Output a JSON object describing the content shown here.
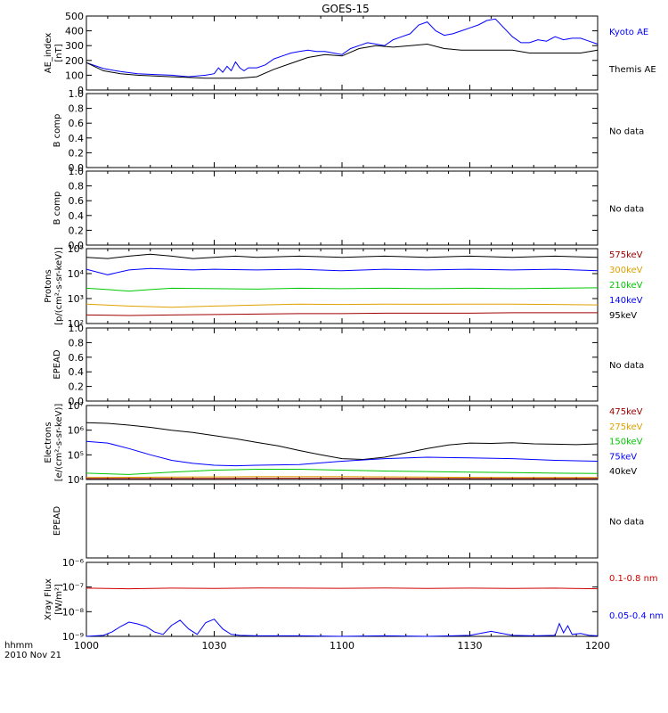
{
  "title": "GOES-15",
  "footer": {
    "line1": "hhmm",
    "line2": "2010 Nov 21"
  },
  "x_axis": {
    "ticks": [
      {
        "t": 0,
        "label": "1000"
      },
      {
        "t": 30,
        "label": "1030"
      },
      {
        "t": 60,
        "label": "1100"
      },
      {
        "t": 90,
        "label": "1130"
      },
      {
        "t": 120,
        "label": "1200"
      }
    ],
    "range_minutes": [
      0,
      120
    ]
  },
  "colors": {
    "black": "#000000",
    "blue": "#0000ff",
    "green": "#00c800",
    "orange": "#ff9600",
    "red": "#c80000",
    "xray_red": "#d00000",
    "darkred": "#a00000",
    "gold": "#e0a000"
  },
  "panels": [
    {
      "key": "ae",
      "ylabel": [
        "AE_index",
        "[nT]"
      ],
      "yticks": [
        "500",
        "400",
        "300",
        "200",
        "100",
        "0"
      ],
      "legend": [
        {
          "text": "Kyoto AE",
          "color": "#0000ff"
        },
        {
          "text": "Themis AE",
          "color": "#000000"
        }
      ]
    },
    {
      "key": "b1",
      "ylabel": [
        "B comp"
      ],
      "yticks": [
        "1.0",
        "0.8",
        "0.6",
        "0.4",
        "0.2",
        "0.0"
      ],
      "nodata": "No data"
    },
    {
      "key": "b2",
      "ylabel": [
        "B comp"
      ],
      "yticks": [
        "1.0",
        "0.8",
        "0.6",
        "0.4",
        "0.2",
        "0.0"
      ],
      "nodata": "No data"
    },
    {
      "key": "protons",
      "ylabel": [
        "Protons",
        "[p/(cm²-s-sr-keV)]"
      ],
      "yticks": [
        "10⁵",
        "10⁴",
        "10³",
        "10²"
      ],
      "legend": [
        {
          "text": "575keV",
          "color": "#a00000"
        },
        {
          "text": "300keV",
          "color": "#e0a000"
        },
        {
          "text": "210keV",
          "color": "#00c800"
        },
        {
          "text": "140keV",
          "color": "#0000ff"
        },
        {
          "text": "95keV",
          "color": "#000000"
        }
      ]
    },
    {
      "key": "epead1",
      "ylabel": [
        "EPEAD"
      ],
      "yticks": [
        "1.0",
        "0.8",
        "0.6",
        "0.4",
        "0.2",
        "0.0"
      ],
      "nodata": "No data"
    },
    {
      "key": "electrons",
      "ylabel": [
        "Electrons",
        "[e/(cm²-s-sr-keV)]"
      ],
      "yticks": [
        "10⁷",
        "10⁶",
        "10⁵",
        "10⁴"
      ],
      "legend": [
        {
          "text": "475keV",
          "color": "#a00000"
        },
        {
          "text": "275keV",
          "color": "#e0a000"
        },
        {
          "text": "150keV",
          "color": "#00c800"
        },
        {
          "text": "75keV",
          "color": "#0000ff"
        },
        {
          "text": "40keV",
          "color": "#000000"
        }
      ]
    },
    {
      "key": "epead2",
      "ylabel": [
        "EPEAD"
      ],
      "yticks": [],
      "nodata": "No data"
    },
    {
      "key": "xray",
      "ylabel": [
        "Xray Flux",
        "[W/m²]"
      ],
      "yticks": [
        "10⁻⁶",
        "10⁻⁷",
        "10⁻⁸",
        "10⁻⁹"
      ],
      "legend": [
        {
          "text": "0.1-0.8 nm",
          "color": "#d00000"
        },
        {
          "text": "0.05-0.4 nm",
          "color": "#0000ff"
        }
      ]
    }
  ],
  "chart_data": [
    {
      "type": "line",
      "title": "GOES-15",
      "ylabel": "AE_index [nT]",
      "ylim": [
        0,
        500
      ],
      "x_unit": "minutes after 1000",
      "series": [
        {
          "name": "Kyoto AE",
          "color": "#0000ff",
          "x": [
            0,
            4,
            8,
            12,
            16,
            20,
            24,
            28,
            30,
            31,
            32,
            33,
            34,
            35,
            36,
            37,
            38,
            40,
            42,
            44,
            46,
            48,
            50,
            52,
            54,
            56,
            58,
            60,
            62,
            64,
            66,
            68,
            70,
            72,
            74,
            76,
            78,
            80,
            82,
            84,
            86,
            88,
            90,
            92,
            94,
            96,
            98,
            100,
            102,
            104,
            106,
            108,
            110,
            112,
            114,
            116,
            118,
            120
          ],
          "y": [
            185,
            145,
            125,
            110,
            105,
            100,
            90,
            100,
            110,
            150,
            120,
            160,
            130,
            190,
            150,
            130,
            150,
            150,
            170,
            210,
            230,
            250,
            260,
            270,
            260,
            260,
            250,
            240,
            280,
            300,
            320,
            310,
            300,
            340,
            360,
            380,
            440,
            460,
            400,
            370,
            380,
            400,
            420,
            440,
            470,
            480,
            420,
            360,
            320,
            320,
            340,
            330,
            360,
            340,
            350,
            350,
            330,
            310
          ]
        },
        {
          "name": "Themis AE",
          "color": "#000000",
          "x": [
            0,
            4,
            8,
            12,
            16,
            20,
            24,
            28,
            32,
            36,
            40,
            44,
            48,
            52,
            56,
            60,
            64,
            68,
            72,
            76,
            80,
            84,
            88,
            92,
            96,
            100,
            104,
            108,
            112,
            116,
            120
          ],
          "y": [
            185,
            130,
            110,
            100,
            95,
            90,
            85,
            80,
            80,
            80,
            90,
            140,
            180,
            220,
            240,
            230,
            280,
            300,
            290,
            300,
            310,
            280,
            270,
            270,
            270,
            270,
            250,
            250,
            250,
            250,
            270
          ]
        }
      ]
    },
    {
      "type": "line",
      "ylabel": "B comp",
      "ylim": [
        0,
        1
      ],
      "series": []
    },
    {
      "type": "line",
      "ylabel": "B comp",
      "ylim": [
        0,
        1
      ],
      "series": []
    },
    {
      "type": "line",
      "ylabel": "Protons [p/(cm²-s-sr-keV)]",
      "log_scale": true,
      "ylim": [
        100,
        100000
      ],
      "series": [
        {
          "name": "95keV",
          "color": "#000000",
          "x": [
            0,
            5,
            10,
            15,
            20,
            25,
            30,
            35,
            40,
            50,
            60,
            70,
            80,
            90,
            100,
            110,
            120
          ],
          "y": [
            45000,
            40000,
            50000,
            60000,
            50000,
            40000,
            45000,
            50000,
            45000,
            50000,
            45000,
            50000,
            45000,
            50000,
            45000,
            50000,
            45000
          ]
        },
        {
          "name": "140keV",
          "color": "#0000ff",
          "x": [
            0,
            5,
            10,
            15,
            20,
            25,
            30,
            40,
            50,
            60,
            70,
            80,
            90,
            100,
            110,
            120
          ],
          "y": [
            15000,
            9000,
            14000,
            16000,
            15000,
            14000,
            15000,
            14000,
            15000,
            13000,
            15000,
            14000,
            15000,
            14000,
            15000,
            13000
          ]
        },
        {
          "name": "210keV",
          "color": "#00c800",
          "x": [
            0,
            5,
            10,
            15,
            20,
            30,
            40,
            50,
            60,
            70,
            80,
            90,
            100,
            110,
            120
          ],
          "y": [
            2600,
            2300,
            2000,
            2300,
            2600,
            2500,
            2400,
            2600,
            2500,
            2600,
            2500,
            2600,
            2500,
            2600,
            2700
          ]
        },
        {
          "name": "300keV",
          "color": "#e0a000",
          "x": [
            0,
            10,
            20,
            30,
            40,
            50,
            60,
            70,
            80,
            90,
            100,
            110,
            120
          ],
          "y": [
            600,
            500,
            450,
            500,
            550,
            600,
            580,
            600,
            590,
            600,
            600,
            580,
            560
          ]
        },
        {
          "name": "575keV",
          "color": "#a00000",
          "x": [
            0,
            10,
            20,
            30,
            40,
            50,
            60,
            70,
            80,
            90,
            100,
            110,
            120
          ],
          "y": [
            220,
            210,
            220,
            230,
            240,
            250,
            250,
            260,
            260,
            260,
            270,
            270,
            270
          ]
        }
      ]
    },
    {
      "type": "line",
      "ylabel": "EPEAD",
      "ylim": [
        0,
        1
      ],
      "series": []
    },
    {
      "type": "line",
      "ylabel": "Electrons [e/(cm²-s-sr-keV)]",
      "log_scale": true,
      "ylim": [
        10000,
        10000000
      ],
      "series": [
        {
          "name": "40keV",
          "color": "#000000",
          "x": [
            0,
            5,
            10,
            15,
            20,
            25,
            30,
            35,
            40,
            45,
            50,
            55,
            60,
            65,
            70,
            75,
            80,
            85,
            90,
            95,
            100,
            105,
            110,
            115,
            120
          ],
          "y": [
            2000000,
            1900000,
            1600000,
            1300000,
            1000000,
            800000,
            600000,
            450000,
            320000,
            230000,
            150000,
            100000,
            70000,
            65000,
            80000,
            120000,
            180000,
            250000,
            300000,
            290000,
            310000,
            280000,
            270000,
            260000,
            280000
          ]
        },
        {
          "name": "75keV",
          "color": "#0000ff",
          "x": [
            0,
            5,
            10,
            15,
            20,
            25,
            30,
            35,
            40,
            50,
            60,
            70,
            80,
            90,
            100,
            110,
            120
          ],
          "y": [
            350000,
            300000,
            180000,
            100000,
            60000,
            45000,
            38000,
            36000,
            38000,
            40000,
            55000,
            70000,
            80000,
            75000,
            70000,
            60000,
            55000
          ]
        },
        {
          "name": "150keV",
          "color": "#00c800",
          "x": [
            0,
            10,
            20,
            30,
            40,
            50,
            60,
            70,
            80,
            90,
            100,
            110,
            120
          ],
          "y": [
            18000,
            16000,
            20000,
            24000,
            26000,
            26000,
            24000,
            22000,
            21000,
            20000,
            19000,
            18000,
            17500
          ]
        },
        {
          "name": "275keV",
          "color": "#e0a000",
          "x": [
            0,
            20,
            40,
            60,
            80,
            100,
            120
          ],
          "y": [
            12000,
            12500,
            13000,
            13000,
            12500,
            12000,
            12000
          ]
        },
        {
          "name": "475keV",
          "color": "#a00000",
          "x": [
            0,
            20,
            40,
            60,
            80,
            100,
            120
          ],
          "y": [
            11000,
            11000,
            11200,
            11200,
            11000,
            11000,
            11000
          ]
        }
      ]
    },
    {
      "type": "line",
      "ylabel": "EPEAD",
      "series": []
    },
    {
      "type": "line",
      "ylabel": "Xray Flux [W/m²]",
      "log_scale": true,
      "ylim": [
        1e-09,
        1e-06
      ],
      "series": [
        {
          "name": "0.1-0.8 nm",
          "color": "#d00000",
          "x": [
            0,
            10,
            20,
            30,
            40,
            50,
            60,
            70,
            80,
            90,
            100,
            110,
            120
          ],
          "y": [
            9e-08,
            8.5e-08,
            9e-08,
            8.8e-08,
            9.1e-08,
            9e-08,
            8.9e-08,
            9.2e-08,
            8.8e-08,
            9e-08,
            8.7e-08,
            9e-08,
            8.5e-08
          ]
        },
        {
          "name": "0.05-0.4 nm",
          "color": "#0000ff",
          "x": [
            0,
            4,
            6,
            8,
            10,
            12,
            14,
            16,
            18,
            20,
            22,
            24,
            26,
            28,
            30,
            32,
            34,
            36,
            40,
            50,
            60,
            70,
            80,
            90,
            95,
            100,
            105,
            110,
            111,
            112,
            113,
            114,
            116,
            118,
            120
          ],
          "y": [
            1e-09,
            1.1e-09,
            1.5e-09,
            2.5e-09,
            3.8e-09,
            3.2e-09,
            2.5e-09,
            1.5e-09,
            1.2e-09,
            2.8e-09,
            4.5e-09,
            2e-09,
            1.2e-09,
            3.6e-09,
            5e-09,
            2e-09,
            1.2e-09,
            1.1e-09,
            1.05e-09,
            1.05e-09,
            1e-09,
            1.05e-09,
            1e-09,
            1.1e-09,
            1.6e-09,
            1.1e-09,
            1.05e-09,
            1.1e-09,
            3.3e-09,
            1.4e-09,
            2.7e-09,
            1.2e-09,
            1.3e-09,
            1.1e-09,
            1.05e-09
          ]
        }
      ]
    }
  ]
}
